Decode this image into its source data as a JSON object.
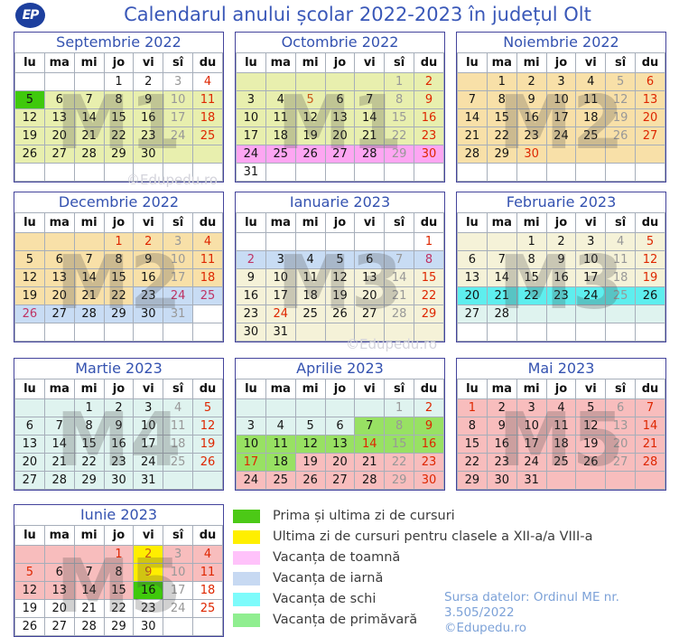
{
  "page": {
    "title": "Calendarul anului școlar 2022-2023 în județul Olt",
    "logo_text": "EP"
  },
  "day_headers": [
    "lu",
    "ma",
    "mi",
    "jo",
    "vi",
    "sî",
    "du"
  ],
  "colors": {
    "bg": {
      "white": "#ffffff",
      "m1": "#e8efae",
      "m2": "#f8e0a8",
      "m3": "#f5f2d8",
      "m4": "#dff3ef",
      "m5": "#f8bdbd",
      "autumn": "#fda6f2",
      "winter": "#c8dcf4",
      "ski": "#5eeeee",
      "spring": "#98e163",
      "firstlast": "#3fc90c",
      "lastday": "#ffee00"
    },
    "fg": {
      "wk": "#141414",
      "sat": "#989898",
      "sun": "#de2600",
      "maroon": "#bf3364",
      "orange": "#c9571a"
    }
  },
  "months": [
    {
      "name": "Septembrie 2022",
      "watermark": "M1",
      "weeks": [
        [
          "",
          "",
          "",
          "1",
          "2",
          "3;;sat",
          "4;;sun"
        ],
        [
          "5;firstlast",
          "6;m1",
          "7;m1",
          "8;m1",
          "9;m1",
          "10;m1;sat",
          "11;m1;sun"
        ],
        [
          "12;m1",
          "13;m1",
          "14;m1",
          "15;m1",
          "16;m1",
          "17;m1;sat",
          "18;m1;sun"
        ],
        [
          "19;m1",
          "20;m1",
          "21;m1",
          "22;m1",
          "23;m1",
          "24;m1;sat",
          "25;m1;sun"
        ],
        [
          "26;m1",
          "27;m1",
          "28;m1",
          "29;m1",
          "30;m1",
          ";m1",
          ";m1"
        ],
        [
          "",
          "",
          "",
          "",
          "",
          "",
          ""
        ]
      ]
    },
    {
      "name": "Octombrie 2022",
      "watermark": "M1",
      "weeks": [
        [
          ";m1",
          ";m1",
          ";m1",
          ";m1",
          ";m1",
          "1;m1;sat",
          "2;m1;sun"
        ],
        [
          "3;m1",
          "4;m1",
          "5;m1;orange",
          "6;m1",
          "7;m1",
          "8;m1;sat",
          "9;m1;sun"
        ],
        [
          "10;m1",
          "11;m1",
          "12;m1",
          "13;m1",
          "14;m1",
          "15;m1;sat",
          "16;m1;sun"
        ],
        [
          "17;m1",
          "18;m1",
          "19;m1",
          "20;m1",
          "21;m1",
          "22;m1;sat",
          "23;m1;sun"
        ],
        [
          "24;autumn",
          "25;autumn",
          "26;autumn",
          "27;autumn",
          "28;autumn",
          "29;autumn;sat",
          "30;autumn;sun"
        ],
        [
          "31",
          "",
          "",
          "",
          "",
          "",
          ""
        ]
      ]
    },
    {
      "name": "Noiembrie 2022",
      "watermark": "M2",
      "weeks": [
        [
          ";m2",
          "1;m2",
          "2;m2",
          "3;m2",
          "4;m2",
          "5;m2;sat",
          "6;m2;sun"
        ],
        [
          "7;m2",
          "8;m2",
          "9;m2",
          "10;m2",
          "11;m2",
          "12;m2;sat",
          "13;m2;sun"
        ],
        [
          "14;m2",
          "15;m2",
          "16;m2",
          "17;m2",
          "18;m2",
          "19;m2;sat",
          "20;m2;sun"
        ],
        [
          "21;m2",
          "22;m2",
          "23;m2",
          "24;m2",
          "25;m2",
          "26;m2;sat",
          "27;m2;sun"
        ],
        [
          "28;m2",
          "29;m2",
          "30;m2;sun",
          ";m2",
          ";m2",
          ";m2",
          ";m2"
        ],
        [
          "",
          "",
          "",
          "",
          "",
          "",
          ""
        ]
      ]
    },
    {
      "name": "Decembrie 2022",
      "watermark": "M2",
      "weeks": [
        [
          ";m2",
          ";m2",
          ";m2",
          "1;m2;sun",
          "2;m2;sun",
          "3;m2;sat",
          "4;m2;sun"
        ],
        [
          "5;m2",
          "6;m2",
          "7;m2",
          "8;m2",
          "9;m2",
          "10;m2;sat",
          "11;m2;sun"
        ],
        [
          "12;m2",
          "13;m2",
          "14;m2",
          "15;m2",
          "16;m2",
          "17;m2;sat",
          "18;m2;sun"
        ],
        [
          "19;m2",
          "20;m2",
          "21;m2",
          "22;m2",
          "23;winter",
          "24;winter;maroon",
          "25;winter;maroon"
        ],
        [
          "26;winter;maroon",
          "27;winter",
          "28;winter",
          "29;winter",
          "30;winter",
          "31;winter;sat",
          ""
        ],
        [
          "",
          "",
          "",
          "",
          "",
          "",
          ""
        ]
      ]
    },
    {
      "name": "Ianuarie 2023",
      "watermark": "M3",
      "weeks": [
        [
          "",
          "",
          "",
          "",
          "",
          "",
          "1;;sun"
        ],
        [
          "2;winter;maroon",
          "3;winter",
          "4;winter",
          "5;winter",
          "6;winter",
          "7;winter;sat",
          "8;winter;maroon"
        ],
        [
          "9;m3",
          "10;m3",
          "11;m3",
          "12;m3",
          "13;m3",
          "14;m3;sat",
          "15;m3;sun"
        ],
        [
          "16;m3",
          "17;m3",
          "18;m3",
          "19;m3",
          "20;m3",
          "21;m3;sat",
          "22;m3;sun"
        ],
        [
          "23;m3",
          "24;m3;sun",
          "25;m3",
          "26;m3",
          "27;m3",
          "28;m3;sat",
          "29;m3;sun"
        ],
        [
          "30;m3",
          "31;m3",
          ";m3",
          ";m3",
          ";m3",
          ";m3",
          ";m3"
        ]
      ]
    },
    {
      "name": "Februarie 2023",
      "watermark": "M3",
      "weeks": [
        [
          ";m3",
          ";m3",
          "1;m3",
          "2;m3",
          "3;m3",
          "4;m3;sat",
          "5;m3;sun"
        ],
        [
          "6;m3",
          "7;m3",
          "8;m3",
          "9;m3",
          "10;m3",
          "11;m3;sat",
          "12;m3;sun"
        ],
        [
          "13;m3",
          "14;m3",
          "15;m3",
          "16;m3",
          "17;m3",
          "18;m3;sat",
          "19;m3;sun"
        ],
        [
          "20;ski",
          "21;ski",
          "22;ski",
          "23;ski",
          "24;ski",
          "25;ski;sat",
          "26;ski"
        ],
        [
          "27;m4",
          "28;m4",
          ";m4",
          ";m4",
          ";m4",
          ";m4",
          ";m4"
        ],
        [
          "",
          "",
          "",
          "",
          "",
          "",
          ""
        ]
      ]
    },
    {
      "name": "Martie 2023",
      "watermark": "M4",
      "weeks": [
        [
          ";m4",
          ";m4",
          "1;m4",
          "2;m4",
          "3;m4",
          "4;m4;sat",
          "5;m4;sun"
        ],
        [
          "6;m4",
          "7;m4",
          "8;m4",
          "9;m4",
          "10;m4",
          "11;m4;sat",
          "12;m4;sun"
        ],
        [
          "13;m4",
          "14;m4",
          "15;m4",
          "16;m4",
          "17;m4",
          "18;m4;sat",
          "19;m4;sun"
        ],
        [
          "20;m4",
          "21;m4",
          "22;m4",
          "23;m4",
          "24;m4",
          "25;m4;sat",
          "26;m4;sun"
        ],
        [
          "27;m4",
          "28;m4",
          "29;m4",
          "30;m4",
          "31;m4",
          ";m4",
          ";m4"
        ]
      ]
    },
    {
      "name": "Aprilie 2023",
      "watermark": "",
      "weeks": [
        [
          ";m4",
          ";m4",
          ";m4",
          ";m4",
          ";m4",
          "1;m4;sat",
          "2;m4;sun"
        ],
        [
          "3;m4",
          "4;m4",
          "5;m4",
          "6;m4",
          "7;spring",
          "8;spring;sat",
          "9;spring;sun"
        ],
        [
          "10;spring",
          "11;spring",
          "12;spring",
          "13;spring",
          "14;spring;sun",
          "15;spring;sat",
          "16;spring;sun"
        ],
        [
          "17;spring;sun",
          "18;spring",
          "19;m5",
          "20;m5",
          "21;m5",
          "22;m5;sat",
          "23;m5;sun"
        ],
        [
          "24;m5",
          "25;m5",
          "26;m5",
          "27;m5",
          "28;m5",
          "29;m5;sat",
          "30;m5;sun"
        ]
      ]
    },
    {
      "name": "Mai 2023",
      "watermark": "M5",
      "weeks": [
        [
          "1;m5;sun",
          "2;m5",
          "3;m5",
          "4;m5",
          "5;m5",
          "6;m5;sat",
          "7;m5;sun"
        ],
        [
          "8;m5",
          "9;m5",
          "10;m5",
          "11;m5",
          "12;m5",
          "13;m5;sat",
          "14;m5;sun"
        ],
        [
          "15;m5",
          "16;m5",
          "17;m5",
          "18;m5",
          "19;m5",
          "20;m5;sat",
          "21;m5;sun"
        ],
        [
          "22;m5",
          "23;m5",
          "24;m5",
          "25;m5",
          "26;m5",
          "27;m5;sat",
          "28;m5;sun"
        ],
        [
          "29;m5",
          "30;m5",
          "31;m5",
          ";m5",
          ";m5",
          ";m5",
          ";m5"
        ]
      ]
    },
    {
      "name": "Iunie 2023",
      "watermark": "M5",
      "weeks": [
        [
          ";m5",
          ";m5",
          ";m5",
          "1;m5;sun",
          "2;lastday;orange",
          "3;m5;sat",
          "4;m5;sun"
        ],
        [
          "5;m5;sun",
          "6;m5",
          "7;m5",
          "8;m5",
          "9;lastday;orange",
          "10;m5;sat",
          "11;m5;sun"
        ],
        [
          "12;m5",
          "13;m5",
          "14;m5",
          "15;m5",
          "16;firstlast",
          "17;;sat",
          "18;;sun"
        ],
        [
          "19",
          "20",
          "21",
          "22",
          "23",
          "24;;sat",
          "25;;sun"
        ],
        [
          "26",
          "27",
          "28",
          "29",
          "30",
          "",
          ""
        ]
      ]
    }
  ],
  "legend": [
    {
      "color": "#4cc916",
      "label": "Prima și ultima zi de cursuri"
    },
    {
      "color": "#ffef00",
      "label": "Ultima zi de cursuri pentru clasele a XII-a/a VIII-a"
    },
    {
      "color": "#ffc2fa",
      "label": "Vacanța de toamnă"
    },
    {
      "color": "#c7d9f2",
      "label": "Vacanța de iarnă"
    },
    {
      "color": "#7dfbfb",
      "label": "Vacanța de schi"
    },
    {
      "color": "#90ee90",
      "label": "Vacanța de primăvară"
    }
  ],
  "credits": {
    "source": "Sursa datelor: Ordinul ME nr. 3.505/2022",
    "copyright": "©Edupedu.ro"
  },
  "ghost_watermarks": [
    "©Edupedu.ro",
    "©Edupedu.ro"
  ]
}
